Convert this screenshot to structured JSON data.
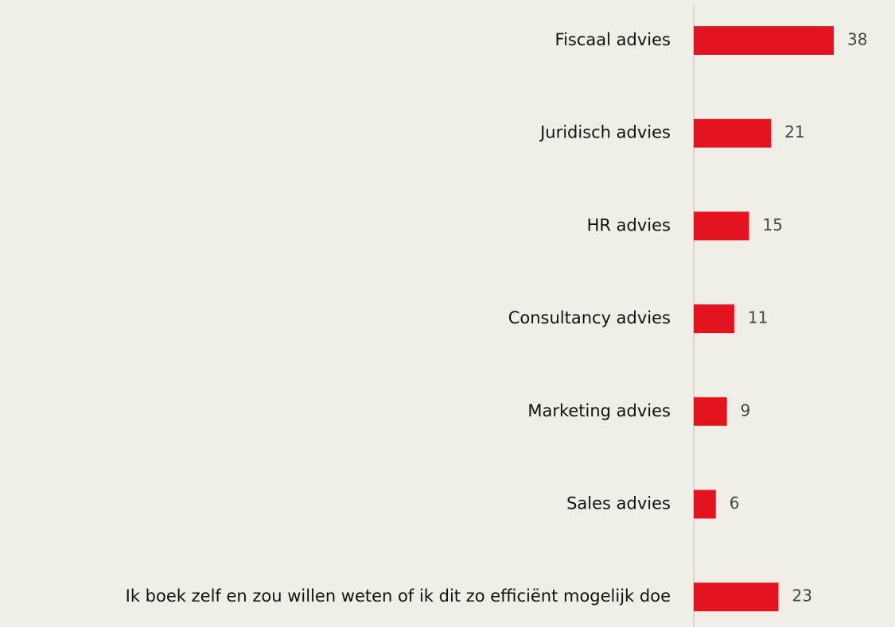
{
  "chart_data": {
    "type": "bar",
    "orientation": "horizontal",
    "categories": [
      "Fiscaal advies",
      "Juridisch advies",
      "HR advies",
      "Consultancy advies",
      "Marketing advies",
      "Sales advies",
      "Ik boek zelf en zou willen weten of ik dit zo efficiënt mogelijk doe"
    ],
    "values": [
      38,
      21,
      15,
      11,
      9,
      6,
      23
    ],
    "color": "#e3141f"
  }
}
